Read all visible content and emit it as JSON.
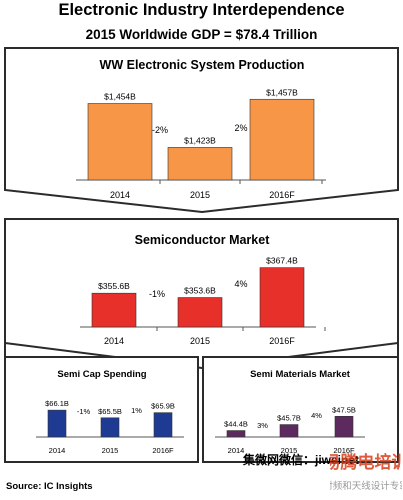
{
  "header": {
    "title": "Electronic Industry Interdependence",
    "subtitle": "2015 Worldwide GDP = $78.4 Trillion"
  },
  "footer": {
    "source": "Source:  IC Insights",
    "credit": "集微网微信：jiweinet",
    "watermark_main": "易腾电培训",
    "watermark_sub": "射频和天线设计专家"
  },
  "colors": {
    "frame": "#2b2b2b",
    "orange": "#f79646",
    "red": "#e8302a",
    "navy": "#1f3a93",
    "purple": "#5c2a5e",
    "watermark": "#d9401c"
  },
  "chart_data": [
    {
      "type": "bar",
      "title": "WW Electronic System Production",
      "categories": [
        "2014",
        "2015",
        "2016F"
      ],
      "values": [
        1454,
        1423,
        1457
      ],
      "unit": "$B",
      "value_labels": [
        "$1,454B",
        "$1,423B",
        "$1,457B"
      ],
      "growth_labels": [
        "-2%",
        "2%"
      ],
      "color": "#f79646"
    },
    {
      "type": "bar",
      "title": "Semiconductor Market",
      "categories": [
        "2014",
        "2015",
        "2016F"
      ],
      "values": [
        355.6,
        353.6,
        367.4
      ],
      "unit": "$B",
      "value_labels": [
        "$355.6B",
        "$353.6B",
        "$367.4B"
      ],
      "growth_labels": [
        "-1%",
        "4%"
      ],
      "color": "#e8302a"
    },
    {
      "type": "bar",
      "title": "Semi Cap Spending",
      "categories": [
        "2014",
        "2015",
        "2016F"
      ],
      "values": [
        66.1,
        65.5,
        65.9
      ],
      "unit": "$B",
      "value_labels": [
        "$66.1B",
        "$65.5B",
        "$65.9B"
      ],
      "growth_labels": [
        "-1%",
        "1%"
      ],
      "color": "#1f3a93"
    },
    {
      "type": "bar",
      "title": "Semi Materials Market",
      "categories": [
        "2014",
        "2015",
        "2016F"
      ],
      "values": [
        44.4,
        45.7,
        47.5
      ],
      "unit": "$B",
      "value_labels": [
        "$44.4B",
        "$45.7B",
        "$47.5B"
      ],
      "growth_labels": [
        "3%",
        "4%"
      ],
      "color": "#5c2a5e"
    }
  ]
}
